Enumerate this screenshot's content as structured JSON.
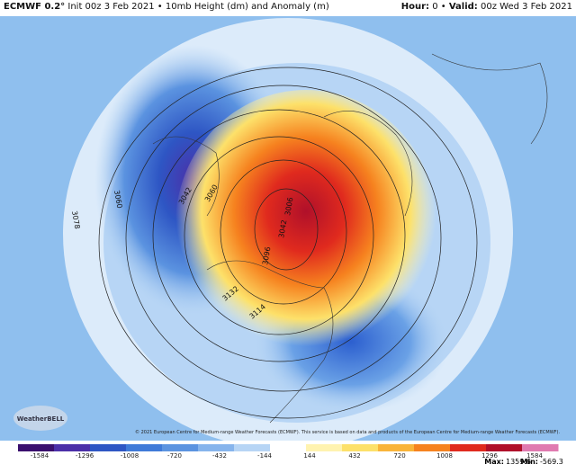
{
  "header": {
    "model": "ECMWF 0.2°",
    "init": "Init 00z 3 Feb 2021",
    "product": "10mb Height (dm) and Anomaly (m)",
    "hour_label": "Hour:",
    "hour": "0",
    "valid_label": "Valid:",
    "valid": "00z Wed 3 Feb 2021"
  },
  "map": {
    "contour_labels": [
      "3078",
      "3060",
      "3042",
      "3060",
      "3096",
      "3042",
      "3006",
      "3132",
      "3114"
    ],
    "copyright": "© 2021 European Centre for Medium-range Weather Forecasts (ECMWF). This service is based on data and products of the European Centre for Medium-range Weather Forecasts (ECMWF).",
    "logo": "WeatherBELL"
  },
  "colorbar": {
    "ticks": [
      "-1584",
      "-1296",
      "-1008",
      "-720",
      "-432",
      "-144",
      "144",
      "432",
      "720",
      "1008",
      "1296",
      "1584"
    ]
  },
  "footer": {
    "max_label": "Max:",
    "max": "1359.6",
    "min_label": "Min:",
    "min": "-569.3"
  }
}
